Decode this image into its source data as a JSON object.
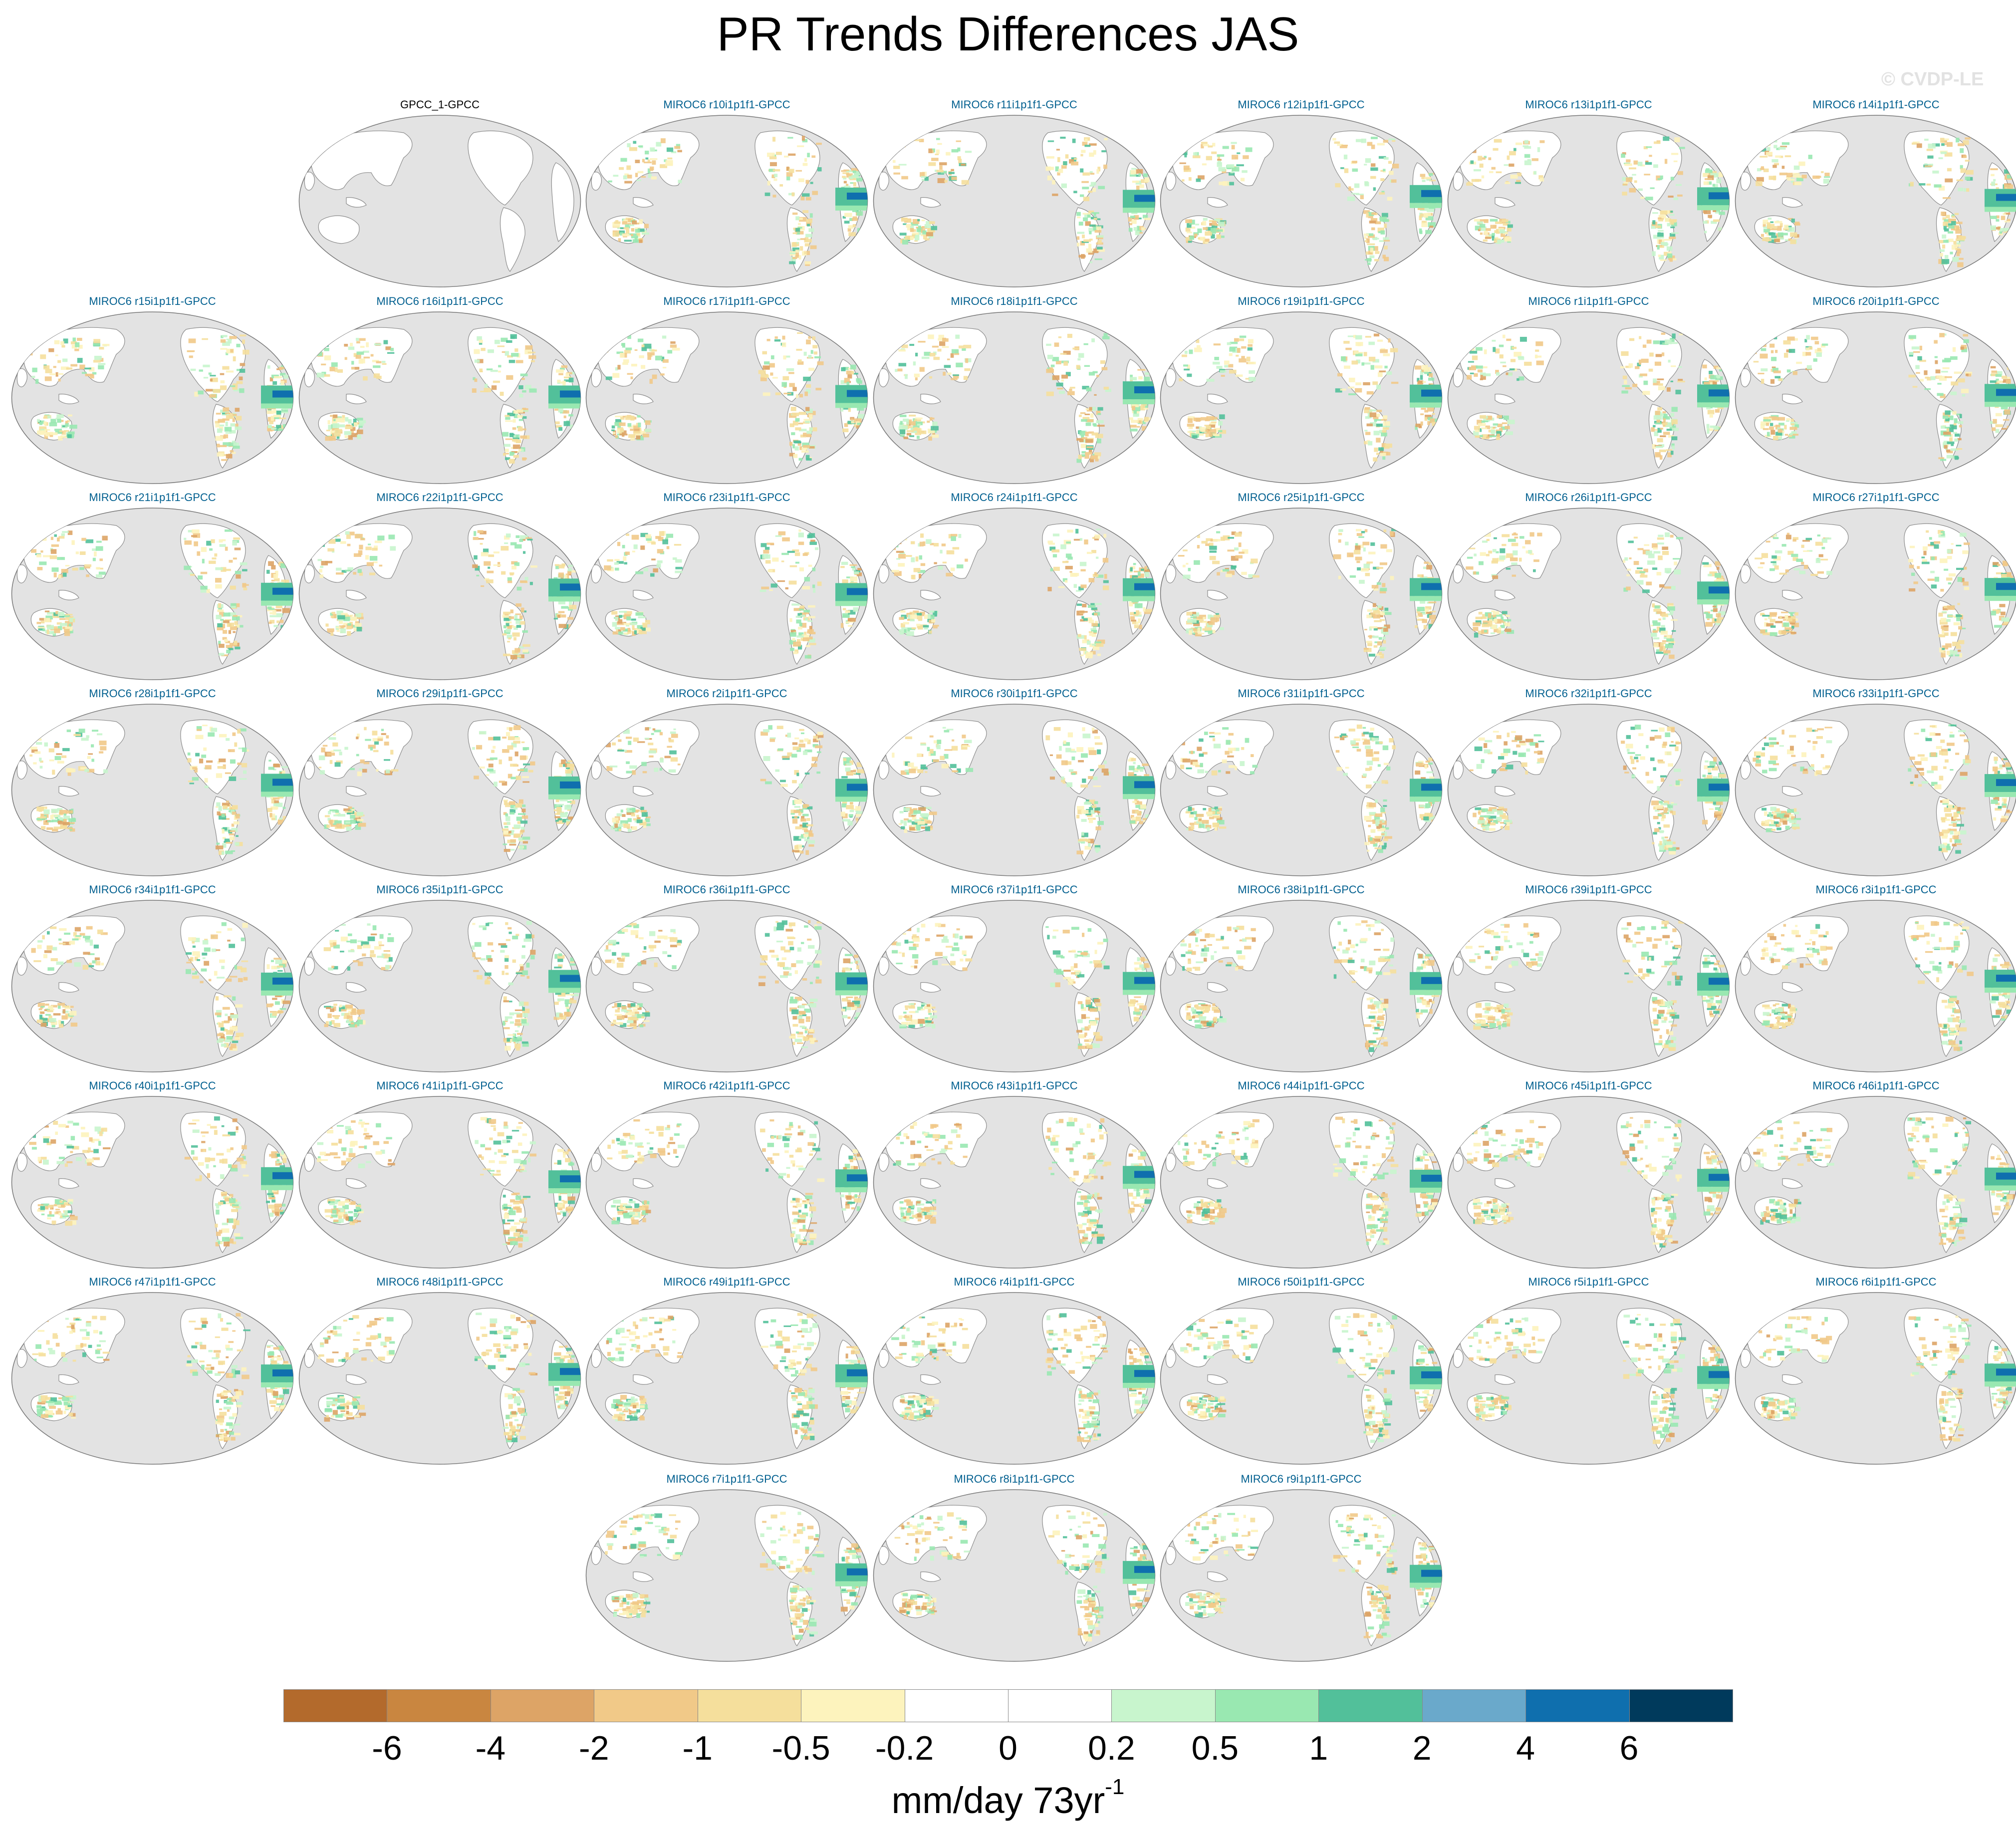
{
  "title": "PR Trends Differences JAS",
  "watermark": "© CVDP-LE",
  "panels": [
    "GPCC_1-GPCC",
    "MIROC6 r10i1p1f1-GPCC",
    "MIROC6 r11i1p1f1-GPCC",
    "MIROC6 r12i1p1f1-GPCC",
    "MIROC6 r13i1p1f1-GPCC",
    "MIROC6 r14i1p1f1-GPCC",
    "MIROC6 r15i1p1f1-GPCC",
    "MIROC6 r16i1p1f1-GPCC",
    "MIROC6 r17i1p1f1-GPCC",
    "MIROC6 r18i1p1f1-GPCC",
    "MIROC6 r19i1p1f1-GPCC",
    "MIROC6 r1i1p1f1-GPCC",
    "MIROC6 r20i1p1f1-GPCC",
    "MIROC6 r21i1p1f1-GPCC",
    "MIROC6 r22i1p1f1-GPCC",
    "MIROC6 r23i1p1f1-GPCC",
    "MIROC6 r24i1p1f1-GPCC",
    "MIROC6 r25i1p1f1-GPCC",
    "MIROC6 r26i1p1f1-GPCC",
    "MIROC6 r27i1p1f1-GPCC",
    "MIROC6 r28i1p1f1-GPCC",
    "MIROC6 r29i1p1f1-GPCC",
    "MIROC6 r2i1p1f1-GPCC",
    "MIROC6 r30i1p1f1-GPCC",
    "MIROC6 r31i1p1f1-GPCC",
    "MIROC6 r32i1p1f1-GPCC",
    "MIROC6 r33i1p1f1-GPCC",
    "MIROC6 r34i1p1f1-GPCC",
    "MIROC6 r35i1p1f1-GPCC",
    "MIROC6 r36i1p1f1-GPCC",
    "MIROC6 r37i1p1f1-GPCC",
    "MIROC6 r38i1p1f1-GPCC",
    "MIROC6 r39i1p1f1-GPCC",
    "MIROC6 r3i1p1f1-GPCC",
    "MIROC6 r40i1p1f1-GPCC",
    "MIROC6 r41i1p1f1-GPCC",
    "MIROC6 r42i1p1f1-GPCC",
    "MIROC6 r43i1p1f1-GPCC",
    "MIROC6 r44i1p1f1-GPCC",
    "MIROC6 r45i1p1f1-GPCC",
    "MIROC6 r46i1p1f1-GPCC",
    "MIROC6 r47i1p1f1-GPCC",
    "MIROC6 r48i1p1f1-GPCC",
    "MIROC6 r49i1p1f1-GPCC",
    "MIROC6 r4i1p1f1-GPCC",
    "MIROC6 r50i1p1f1-GPCC",
    "MIROC6 r5i1p1f1-GPCC",
    "MIROC6 r6i1p1f1-GPCC",
    "MIROC6 r7i1p1f1-GPCC",
    "MIROC6 r8i1p1f1-GPCC",
    "MIROC6 r9i1p1f1-GPCC"
  ],
  "colorbar": {
    "colors": [
      "#b36a2c",
      "#c98640",
      "#dda466",
      "#f1c988",
      "#f5df9c",
      "#fdf3bd",
      "#ffffff",
      "#ffffff",
      "#c8f5cd",
      "#99e8b1",
      "#52c09a",
      "#6aa9cb",
      "#0f6fae",
      "#003a5c"
    ],
    "labels": [
      "-6",
      "-4",
      "-2",
      "-1",
      "-0.5",
      "-0.2",
      "0",
      "0.2",
      "0.5",
      "1",
      "2",
      "4",
      "6"
    ]
  },
  "units": "mm/day 73yr",
  "units_superscript": "-1",
  "colors": {
    "ocean": "#e3e3e3",
    "land": "#ffffff",
    "coast": "#8c8c8c",
    "panel_title": "#005f8f"
  }
}
